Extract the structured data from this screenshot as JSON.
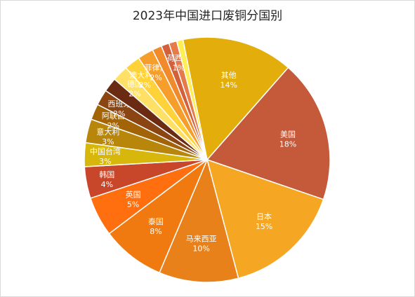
{
  "chart_data": {
    "type": "pie",
    "title": "2023年中国进口废铜分国别",
    "slices": [
      {
        "label": "美国",
        "pct_label": "18%",
        "value": 18,
        "color": "#c55a3a"
      },
      {
        "label": "日本",
        "pct_label": "15%",
        "value": 15,
        "color": "#f5a623"
      },
      {
        "label": "马来西亚",
        "pct_label": "10%",
        "value": 10,
        "color": "#e8811a"
      },
      {
        "label": "泰国",
        "pct_label": "8%",
        "value": 8,
        "color": "#f07a10"
      },
      {
        "label": "英国",
        "pct_label": "5%",
        "value": 5,
        "color": "#ff6f0f"
      },
      {
        "label": "韩国",
        "pct_label": "4%",
        "value": 4,
        "color": "#c8462a"
      },
      {
        "label": "中国台湾",
        "pct_label": "3%",
        "value": 3,
        "color": "#d8b70d"
      },
      {
        "label": "意大利",
        "pct_label": "3%",
        "value": 3,
        "color": "#b8860b"
      },
      {
        "label": "阿联酋",
        "pct_label": "2%",
        "value": 2,
        "color": "#a36408"
      },
      {
        "label": "西班牙",
        "pct_label": "2%",
        "value": 2,
        "color": "#8b4513"
      },
      {
        "label": "",
        "pct_label": "",
        "value": 1.8,
        "color": "#6b2a12"
      },
      {
        "label": "德国",
        "pct_label": "2%",
        "value": 2,
        "color": "#ffe066"
      },
      {
        "label": "澳大利亚",
        "pct_label": "2%",
        "value": 2,
        "color": "#ffd23a"
      },
      {
        "label": "菲律宾",
        "pct_label": "2%",
        "value": 2,
        "color": "#f59e2b"
      },
      {
        "label": "",
        "pct_label": "",
        "value": 1.2,
        "color": "#f08a2a"
      },
      {
        "label": "",
        "pct_label": "",
        "value": 1,
        "color": "#d2603a"
      },
      {
        "label": "荷西牙",
        "pct_label": "1%",
        "value": 1,
        "color": "#e57a4a"
      },
      {
        "label": "",
        "pct_label": "",
        "value": 0.8,
        "color": "#ffee55"
      },
      {
        "label": "其他",
        "pct_label": "14%",
        "value": 14,
        "color": "#e3ad0c"
      }
    ]
  }
}
